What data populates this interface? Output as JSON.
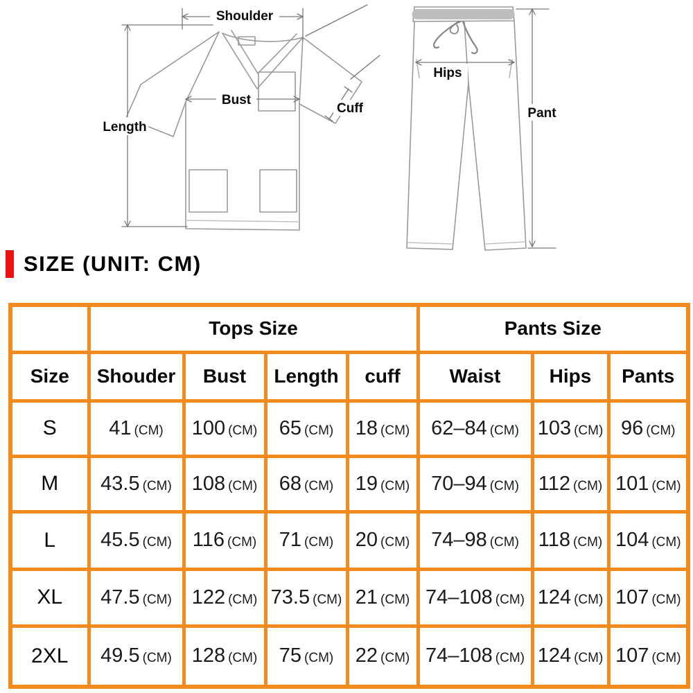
{
  "colors": {
    "accent_red": "#ee1111",
    "table_border_orange": "#f28a1d",
    "drawing_line_gray": "#999999",
    "dimension_line_gray": "#777777"
  },
  "diagram": {
    "top_labels": {
      "shoulder": "Shoulder",
      "bust": "Bust",
      "cuff": "Cuff",
      "length": "Length"
    },
    "pants_labels": {
      "hips": "Hips",
      "pant": "Pant"
    }
  },
  "heading": {
    "text": "SIZE (UNIT: CM)"
  },
  "table": {
    "group_headers": [
      {
        "label": "Tops Size",
        "span": 4
      },
      {
        "label": "Pants Size",
        "span": 3
      }
    ],
    "columns": [
      "Size",
      "Shouder",
      "Bust",
      "Length",
      "cuff",
      "Waist",
      "Hips",
      "Pants"
    ],
    "rows": [
      {
        "size": "S",
        "cells": [
          {
            "v": "41",
            "u": "(CM)"
          },
          {
            "v": "100",
            "u": "(CM)"
          },
          {
            "v": "65",
            "u": "(CM)"
          },
          {
            "v": "18",
            "u": "(CM)"
          },
          {
            "v": "62–84",
            "u": "(CM)"
          },
          {
            "v": "103",
            "u": "(CM)"
          },
          {
            "v": "96",
            "u": "(CM)"
          }
        ]
      },
      {
        "size": "M",
        "cells": [
          {
            "v": "43.5",
            "u": "(CM)"
          },
          {
            "v": "108",
            "u": "(CM)"
          },
          {
            "v": "68",
            "u": "(CM)"
          },
          {
            "v": "19",
            "u": "(CM)"
          },
          {
            "v": "70–94",
            "u": "(CM)"
          },
          {
            "v": "112",
            "u": "(CM)"
          },
          {
            "v": "101",
            "u": "(CM)"
          }
        ]
      },
      {
        "size": "L",
        "cells": [
          {
            "v": "45.5",
            "u": "(CM)"
          },
          {
            "v": "116",
            "u": "(CM)"
          },
          {
            "v": "71",
            "u": "(CM)"
          },
          {
            "v": "20",
            "u": "(CM)"
          },
          {
            "v": "74–98",
            "u": "(CM)"
          },
          {
            "v": "118",
            "u": "(CM)"
          },
          {
            "v": "104",
            "u": "(CM)"
          }
        ]
      },
      {
        "size": "XL",
        "cells": [
          {
            "v": "47.5",
            "u": "(CM)"
          },
          {
            "v": "122",
            "u": "(CM)"
          },
          {
            "v": "73.5",
            "u": "(CM)"
          },
          {
            "v": "21",
            "u": "(CM)"
          },
          {
            "v": "74–108",
            "u": "(CM)"
          },
          {
            "v": "124",
            "u": "(CM)"
          },
          {
            "v": "107",
            "u": "(CM)"
          }
        ]
      },
      {
        "size": "2XL",
        "cells": [
          {
            "v": "49.5",
            "u": "(CM)"
          },
          {
            "v": "128",
            "u": "(CM)"
          },
          {
            "v": "75",
            "u": "(CM)"
          },
          {
            "v": "22",
            "u": "(CM)"
          },
          {
            "v": "74–108",
            "u": "(CM)"
          },
          {
            "v": "124",
            "u": "(CM)"
          },
          {
            "v": "107",
            "u": "(CM)"
          }
        ]
      }
    ]
  }
}
